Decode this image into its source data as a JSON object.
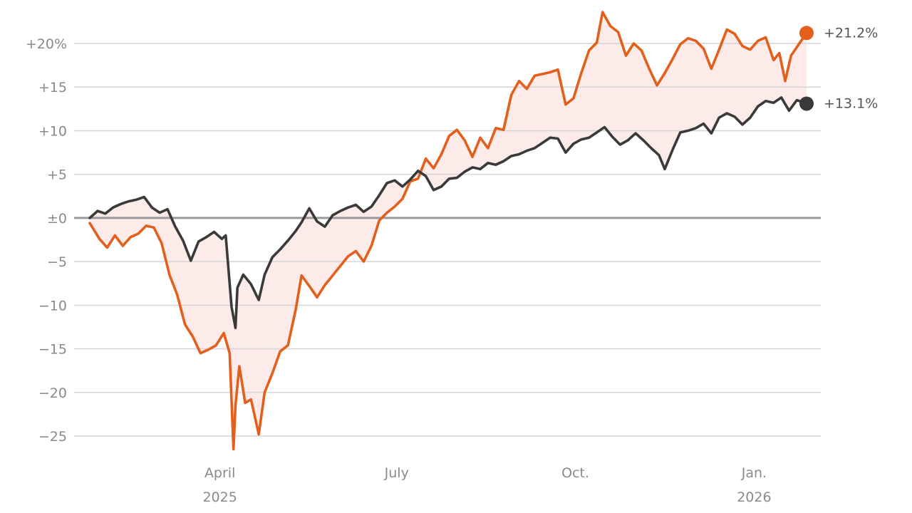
{
  "chart_data": {
    "type": "line",
    "title": "",
    "xlabel": "",
    "ylabel": "",
    "x_range": [
      "2025-01-24",
      "2026-01-28"
    ],
    "ylim": [
      -27,
      22
    ],
    "y_ticks": [
      {
        "value": 20,
        "label": "+20%"
      },
      {
        "value": 15,
        "label": "+15"
      },
      {
        "value": 10,
        "label": "+10"
      },
      {
        "value": 5,
        "label": "+5"
      },
      {
        "value": 0,
        "label": "±0"
      },
      {
        "value": -5,
        "label": "−5"
      },
      {
        "value": -10,
        "label": "−10"
      },
      {
        "value": -15,
        "label": "−15"
      },
      {
        "value": -20,
        "label": "−20"
      },
      {
        "value": -25,
        "label": "−25"
      }
    ],
    "x_ticks": [
      {
        "date": "2025-04-01",
        "label": "April",
        "sublabel": "2025"
      },
      {
        "date": "2025-07-01",
        "label": "July",
        "sublabel": ""
      },
      {
        "date": "2025-10-01",
        "label": "Oct.",
        "sublabel": ""
      },
      {
        "date": "2026-01-01",
        "label": "Jan.",
        "sublabel": "2026"
      }
    ],
    "grid": true,
    "fill_between_series": true,
    "series": [
      {
        "color": "#e35f1c",
        "end_label": "+21.2%",
        "points": [
          [
            "2025-01-24",
            -0.6
          ],
          [
            "2025-01-29",
            -2.4
          ],
          [
            "2025-02-02",
            -3.4
          ],
          [
            "2025-02-06",
            -2.0
          ],
          [
            "2025-02-10",
            -3.2
          ],
          [
            "2025-02-14",
            -2.2
          ],
          [
            "2025-02-18",
            -1.8
          ],
          [
            "2025-02-22",
            -0.9
          ],
          [
            "2025-02-26",
            -1.1
          ],
          [
            "2025-03-02",
            -2.9
          ],
          [
            "2025-03-06",
            -6.5
          ],
          [
            "2025-03-10",
            -8.8
          ],
          [
            "2025-03-14",
            -12.2
          ],
          [
            "2025-03-18",
            -13.6
          ],
          [
            "2025-03-22",
            -15.5
          ],
          [
            "2025-03-26",
            -15.1
          ],
          [
            "2025-03-30",
            -14.6
          ],
          [
            "2025-04-03",
            -13.2
          ],
          [
            "2025-04-06",
            -15.5
          ],
          [
            "2025-04-08",
            -26.5
          ],
          [
            "2025-04-09",
            -21.5
          ],
          [
            "2025-04-11",
            -17.0
          ],
          [
            "2025-04-14",
            -21.2
          ],
          [
            "2025-04-17",
            -20.8
          ],
          [
            "2025-04-21",
            -24.8
          ],
          [
            "2025-04-24",
            -20.0
          ],
          [
            "2025-04-28",
            -17.8
          ],
          [
            "2025-05-02",
            -15.3
          ],
          [
            "2025-05-06",
            -14.6
          ],
          [
            "2025-05-10",
            -10.5
          ],
          [
            "2025-05-13",
            -6.6
          ],
          [
            "2025-05-17",
            -7.8
          ],
          [
            "2025-05-21",
            -9.1
          ],
          [
            "2025-05-25",
            -7.7
          ],
          [
            "2025-05-29",
            -6.6
          ],
          [
            "2025-06-02",
            -5.5
          ],
          [
            "2025-06-06",
            -4.4
          ],
          [
            "2025-06-10",
            -3.8
          ],
          [
            "2025-06-14",
            -5.0
          ],
          [
            "2025-06-18",
            -3.2
          ],
          [
            "2025-06-22",
            -0.3
          ],
          [
            "2025-06-26",
            0.6
          ],
          [
            "2025-06-30",
            1.3
          ],
          [
            "2025-07-04",
            2.2
          ],
          [
            "2025-07-08",
            4.2
          ],
          [
            "2025-07-12",
            4.5
          ],
          [
            "2025-07-16",
            6.8
          ],
          [
            "2025-07-20",
            5.7
          ],
          [
            "2025-07-24",
            7.3
          ],
          [
            "2025-07-28",
            9.4
          ],
          [
            "2025-08-01",
            10.1
          ],
          [
            "2025-08-05",
            8.9
          ],
          [
            "2025-08-09",
            7.0
          ],
          [
            "2025-08-13",
            9.2
          ],
          [
            "2025-08-17",
            8.0
          ],
          [
            "2025-08-21",
            10.3
          ],
          [
            "2025-08-25",
            10.1
          ],
          [
            "2025-08-29",
            14.1
          ],
          [
            "2025-09-02",
            15.7
          ],
          [
            "2025-09-06",
            14.8
          ],
          [
            "2025-09-10",
            16.3
          ],
          [
            "2025-09-14",
            16.5
          ],
          [
            "2025-09-18",
            16.7
          ],
          [
            "2025-09-22",
            17.0
          ],
          [
            "2025-09-26",
            13.0
          ],
          [
            "2025-09-30",
            13.7
          ],
          [
            "2025-10-04",
            16.6
          ],
          [
            "2025-10-08",
            19.2
          ],
          [
            "2025-10-12",
            20.1
          ],
          [
            "2025-10-15",
            23.6
          ],
          [
            "2025-10-19",
            22.0
          ],
          [
            "2025-10-23",
            21.3
          ],
          [
            "2025-10-27",
            18.6
          ],
          [
            "2025-10-31",
            20.0
          ],
          [
            "2025-11-04",
            19.2
          ],
          [
            "2025-11-08",
            17.1
          ],
          [
            "2025-11-12",
            15.2
          ],
          [
            "2025-11-16",
            16.6
          ],
          [
            "2025-11-20",
            18.2
          ],
          [
            "2025-11-24",
            19.9
          ],
          [
            "2025-11-28",
            20.6
          ],
          [
            "2025-12-02",
            20.3
          ],
          [
            "2025-12-06",
            19.4
          ],
          [
            "2025-12-10",
            17.1
          ],
          [
            "2025-12-14",
            19.3
          ],
          [
            "2025-12-18",
            21.6
          ],
          [
            "2025-12-22",
            21.1
          ],
          [
            "2025-12-26",
            19.7
          ],
          [
            "2025-12-30",
            19.3
          ],
          [
            "2026-01-03",
            20.3
          ],
          [
            "2026-01-07",
            20.7
          ],
          [
            "2026-01-11",
            18.1
          ],
          [
            "2026-01-14",
            18.9
          ],
          [
            "2026-01-17",
            15.7
          ],
          [
            "2026-01-20",
            18.6
          ],
          [
            "2026-01-24",
            19.9
          ],
          [
            "2026-01-28",
            21.2
          ]
        ]
      },
      {
        "color": "#3a3a3a",
        "end_label": "+13.1%",
        "points": [
          [
            "2025-01-24",
            0.0
          ],
          [
            "2025-01-28",
            0.8
          ],
          [
            "2025-02-01",
            0.5
          ],
          [
            "2025-02-05",
            1.2
          ],
          [
            "2025-02-09",
            1.6
          ],
          [
            "2025-02-13",
            1.9
          ],
          [
            "2025-02-17",
            2.1
          ],
          [
            "2025-02-21",
            2.4
          ],
          [
            "2025-02-25",
            1.2
          ],
          [
            "2025-03-01",
            0.6
          ],
          [
            "2025-03-05",
            1.0
          ],
          [
            "2025-03-09",
            -1.0
          ],
          [
            "2025-03-13",
            -2.6
          ],
          [
            "2025-03-17",
            -4.9
          ],
          [
            "2025-03-21",
            -2.7
          ],
          [
            "2025-03-25",
            -2.2
          ],
          [
            "2025-03-29",
            -1.6
          ],
          [
            "2025-04-02",
            -2.4
          ],
          [
            "2025-04-04",
            -2.0
          ],
          [
            "2025-04-07",
            -10.2
          ],
          [
            "2025-04-09",
            -12.6
          ],
          [
            "2025-04-10",
            -8.0
          ],
          [
            "2025-04-13",
            -6.5
          ],
          [
            "2025-04-17",
            -7.6
          ],
          [
            "2025-04-21",
            -9.4
          ],
          [
            "2025-04-24",
            -6.5
          ],
          [
            "2025-04-28",
            -4.5
          ],
          [
            "2025-05-02",
            -3.6
          ],
          [
            "2025-05-06",
            -2.6
          ],
          [
            "2025-05-10",
            -1.5
          ],
          [
            "2025-05-13",
            -0.5
          ],
          [
            "2025-05-17",
            1.1
          ],
          [
            "2025-05-21",
            -0.4
          ],
          [
            "2025-05-25",
            -1.0
          ],
          [
            "2025-05-29",
            0.3
          ],
          [
            "2025-06-02",
            0.8
          ],
          [
            "2025-06-06",
            1.2
          ],
          [
            "2025-06-10",
            1.5
          ],
          [
            "2025-06-14",
            0.7
          ],
          [
            "2025-06-18",
            1.3
          ],
          [
            "2025-06-22",
            2.6
          ],
          [
            "2025-06-26",
            4.0
          ],
          [
            "2025-06-30",
            4.3
          ],
          [
            "2025-07-04",
            3.6
          ],
          [
            "2025-07-08",
            4.4
          ],
          [
            "2025-07-12",
            5.4
          ],
          [
            "2025-07-16",
            4.8
          ],
          [
            "2025-07-20",
            3.2
          ],
          [
            "2025-07-24",
            3.6
          ],
          [
            "2025-07-28",
            4.5
          ],
          [
            "2025-08-01",
            4.6
          ],
          [
            "2025-08-05",
            5.3
          ],
          [
            "2025-08-09",
            5.8
          ],
          [
            "2025-08-13",
            5.6
          ],
          [
            "2025-08-17",
            6.3
          ],
          [
            "2025-08-21",
            6.1
          ],
          [
            "2025-08-25",
            6.5
          ],
          [
            "2025-08-29",
            7.1
          ],
          [
            "2025-09-02",
            7.3
          ],
          [
            "2025-09-06",
            7.7
          ],
          [
            "2025-09-10",
            8.0
          ],
          [
            "2025-09-14",
            8.6
          ],
          [
            "2025-09-18",
            9.2
          ],
          [
            "2025-09-22",
            9.1
          ],
          [
            "2025-09-26",
            7.5
          ],
          [
            "2025-09-30",
            8.5
          ],
          [
            "2025-10-04",
            9.0
          ],
          [
            "2025-10-08",
            9.2
          ],
          [
            "2025-10-12",
            9.8
          ],
          [
            "2025-10-16",
            10.4
          ],
          [
            "2025-10-20",
            9.3
          ],
          [
            "2025-10-24",
            8.4
          ],
          [
            "2025-10-28",
            8.9
          ],
          [
            "2025-11-01",
            9.7
          ],
          [
            "2025-11-05",
            8.9
          ],
          [
            "2025-11-09",
            8.0
          ],
          [
            "2025-11-13",
            7.2
          ],
          [
            "2025-11-16",
            5.6
          ],
          [
            "2025-11-20",
            7.8
          ],
          [
            "2025-11-24",
            9.8
          ],
          [
            "2025-11-28",
            10.0
          ],
          [
            "2025-12-02",
            10.3
          ],
          [
            "2025-12-06",
            10.8
          ],
          [
            "2025-12-10",
            9.7
          ],
          [
            "2025-12-14",
            11.5
          ],
          [
            "2025-12-18",
            12.0
          ],
          [
            "2025-12-22",
            11.6
          ],
          [
            "2025-12-26",
            10.7
          ],
          [
            "2025-12-30",
            11.5
          ],
          [
            "2026-01-03",
            12.8
          ],
          [
            "2026-01-07",
            13.4
          ],
          [
            "2026-01-11",
            13.2
          ],
          [
            "2026-01-15",
            13.8
          ],
          [
            "2026-01-19",
            12.3
          ],
          [
            "2026-01-23",
            13.5
          ],
          [
            "2026-01-28",
            13.1
          ]
        ]
      }
    ],
    "fill_color": "#fbe4e1"
  }
}
